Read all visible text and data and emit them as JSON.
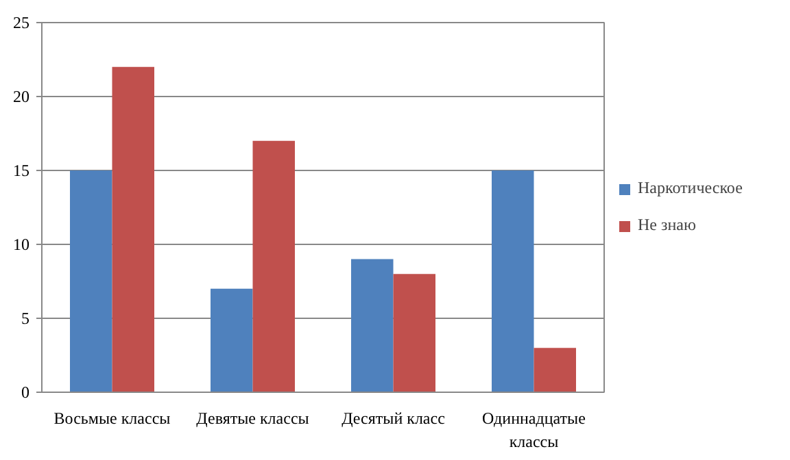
{
  "chart_data": {
    "type": "bar",
    "categories": [
      "Восьмые классы",
      "Девятые классы",
      "Десятый класс",
      "Одиннадцатые классы"
    ],
    "series": [
      {
        "name": "Наркотическое",
        "color": "#4f81bd",
        "values": [
          15,
          7,
          9,
          15
        ]
      },
      {
        "name": "Не знаю",
        "color": "#c0504d",
        "values": [
          22,
          17,
          8,
          3
        ]
      }
    ],
    "ylim": [
      0,
      25
    ],
    "yticks": [
      0,
      5,
      10,
      15,
      20,
      25
    ],
    "grid": "y",
    "legend": "right"
  }
}
